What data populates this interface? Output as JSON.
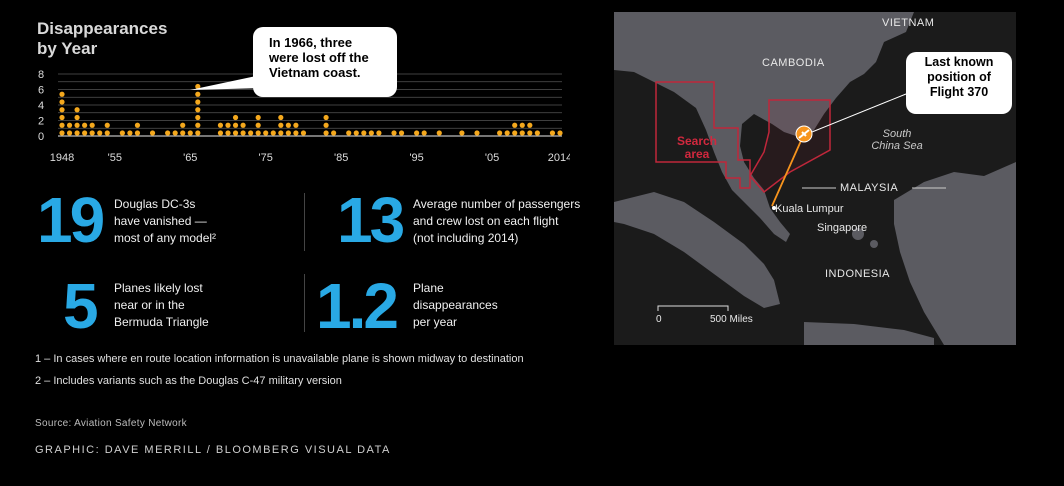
{
  "chart": {
    "title_line1": "Disappearances",
    "title_line2": "by Year",
    "callout_line1": "In 1966, three",
    "callout_line2": "were lost off the",
    "callout_line3": "Vietnam coast."
  },
  "chart_data": {
    "type": "scatter",
    "title": "Disappearances by Year",
    "xlabel": "",
    "ylabel": "",
    "xlim": [
      1948,
      2014
    ],
    "ylim": [
      0,
      8
    ],
    "yticks": [
      0,
      2,
      4,
      6,
      8
    ],
    "xtick_labels": [
      {
        "year": 1948,
        "label": "1948"
      },
      {
        "year": 1955,
        "label": "'55"
      },
      {
        "year": 1965,
        "label": "'65"
      },
      {
        "year": 1975,
        "label": "'75"
      },
      {
        "year": 1985,
        "label": "'85"
      },
      {
        "year": 1995,
        "label": "'95"
      },
      {
        "year": 2005,
        "label": "'05"
      },
      {
        "year": 2014,
        "label": "2014"
      }
    ],
    "grid": true,
    "counts_by_year": {
      "1948": 6,
      "1949": 2,
      "1950": 4,
      "1951": 2,
      "1952": 2,
      "1953": 1,
      "1954": 2,
      "1956": 1,
      "1957": 1,
      "1958": 2,
      "1960": 1,
      "1962": 1,
      "1963": 1,
      "1964": 2,
      "1965": 1,
      "1966": 7,
      "1969": 2,
      "1970": 2,
      "1971": 3,
      "1972": 2,
      "1973": 1,
      "1974": 3,
      "1975": 1,
      "1976": 1,
      "1977": 3,
      "1978": 2,
      "1979": 2,
      "1980": 1,
      "1983": 3,
      "1984": 1,
      "1986": 1,
      "1987": 1,
      "1988": 1,
      "1989": 1,
      "1990": 1,
      "1992": 1,
      "1993": 1,
      "1995": 1,
      "1996": 1,
      "1998": 1,
      "2001": 1,
      "2003": 1,
      "2006": 1,
      "2007": 1,
      "2008": 2,
      "2009": 2,
      "2010": 2,
      "2011": 1,
      "2013": 1,
      "2014": 1
    }
  },
  "stats": [
    {
      "number": "19",
      "text": [
        "Douglas DC-3s",
        "have vanished —",
        "most of any model²"
      ]
    },
    {
      "number": "13",
      "text": [
        "Average number of passengers",
        "and crew lost on each flight",
        "(not including 2014)"
      ]
    },
    {
      "number": "5",
      "text": [
        "Planes likely lost",
        "near or in the",
        "Bermuda Triangle"
      ]
    },
    {
      "number": "1.2",
      "text": [
        "Plane",
        "disappearances",
        "per year"
      ]
    }
  ],
  "notes": {
    "note1": "1 –  In cases where en route location information is unavailable plane is shown midway to destination",
    "note2": "2 –  Includes variants such as the Douglas C-47 military version"
  },
  "source": "Source: Aviation Safety Network",
  "credit": "GRAPHIC: DAVE MERRILL / BLOOMBERG VISUAL DATA",
  "map": {
    "vietnam": "VIETNAM",
    "cambodia": "CAMBODIA",
    "malaysia": "MALAYSIA",
    "indonesia": "INDONESIA",
    "kuala_lumpur": "Kuala Lumpur",
    "singapore": "Singapore",
    "south_china_sea_1": "South",
    "south_china_sea_2": "China Sea",
    "search_area_1": "Search",
    "search_area_2": "area",
    "last_known_1": "Last known",
    "last_known_2": "position of",
    "last_known_3": "Flight 370",
    "scale_zero": "0",
    "scale_miles": "500 Miles",
    "colors": {
      "land": "#5b5b61",
      "sea": "#1b1b1b",
      "search": "#c0273b",
      "flight": "#f7941d"
    }
  }
}
